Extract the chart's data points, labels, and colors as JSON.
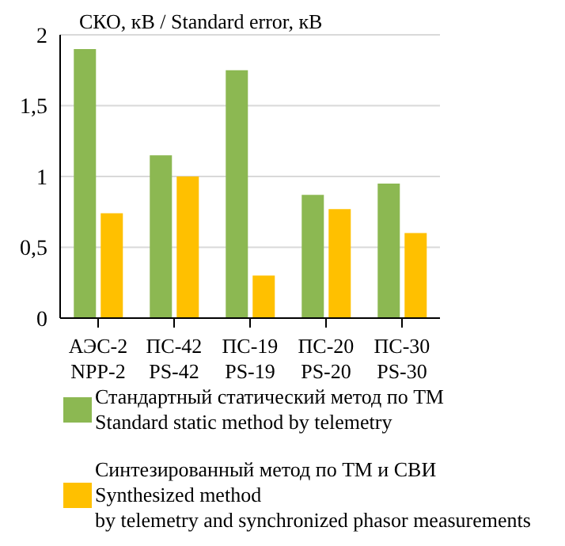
{
  "chart_data": {
    "type": "bar",
    "ylabel": "СКО, кВ / Standard error, кВ",
    "categories": [
      "АЭС-2\nNPP-2",
      "ПС-42\nPS-42",
      "ПС-19\nPS-19",
      "ПС-20\nPS-20",
      "ПС-30\nPS-30"
    ],
    "series": [
      {
        "name": "Стандартный статический метод по ТМ\nStandard static method by telemetry",
        "color": "#8cb852",
        "values": [
          1.9,
          1.15,
          1.75,
          0.87,
          0.95
        ]
      },
      {
        "name": "Синтезированный метод по ТМ и СВИ\nSynthesized method\nby telemetry and synchronized phasor measurements",
        "color": "#ffc000",
        "values": [
          0.74,
          1.0,
          0.3,
          0.77,
          0.6
        ]
      }
    ],
    "ylim": [
      0,
      2
    ],
    "yticks": [
      0,
      {
        "value": 0.5,
        "label": "0,5"
      },
      1,
      {
        "value": 1.5,
        "label": "1,5"
      },
      2
    ],
    "grid": "y",
    "legend": "bottom"
  }
}
